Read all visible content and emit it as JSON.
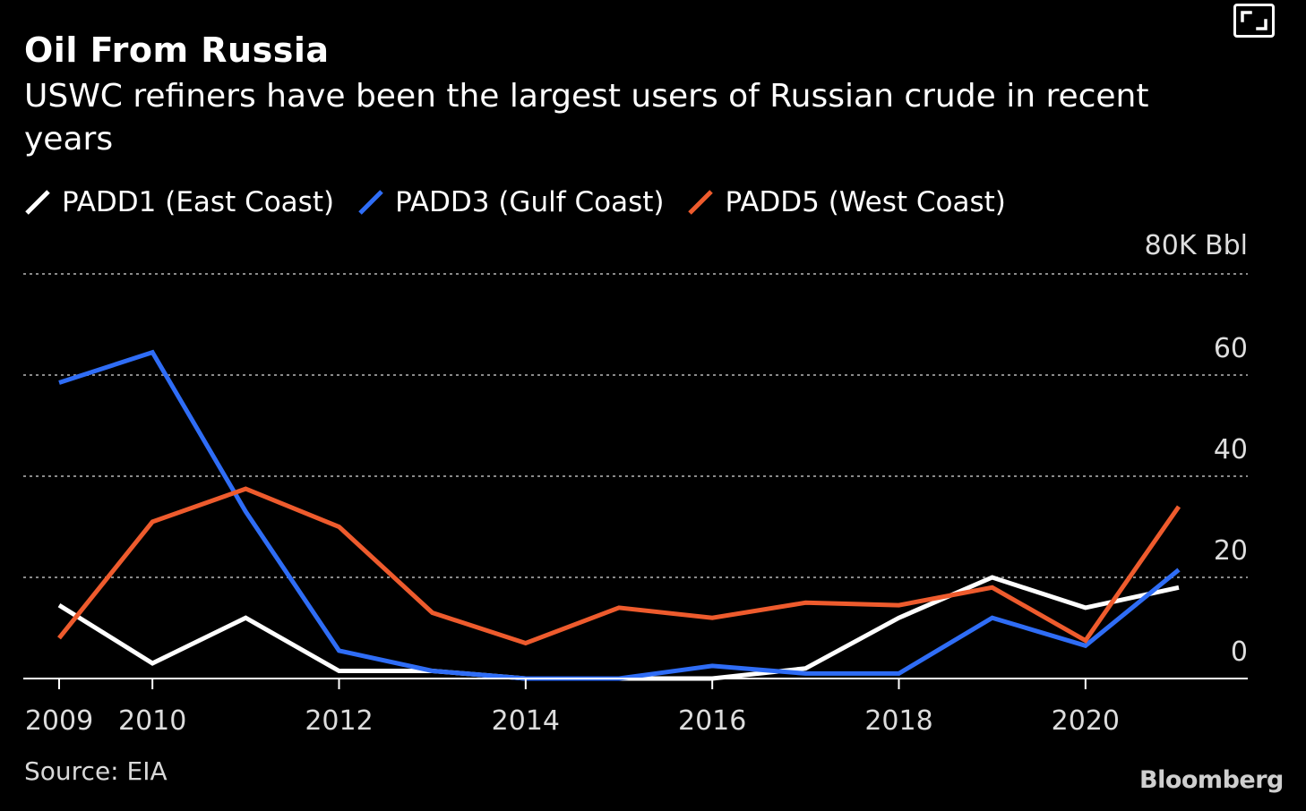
{
  "header": {
    "title": "Oil From Russia",
    "subtitle": "USWC refiners have been the largest users of Russian crude in recent years"
  },
  "icons": {
    "expand": "expand-icon"
  },
  "footer": {
    "source": "Source: EIA",
    "brand": "Bloomberg"
  },
  "colors": {
    "background": "#000000",
    "grid": "#8a8a8a",
    "axis": "#ffffff",
    "tick_label": "#dddddd"
  },
  "chart_data": {
    "type": "line",
    "unit_label": "80K Bbl",
    "x": [
      2009,
      2010,
      2011,
      2012,
      2013,
      2014,
      2015,
      2016,
      2017,
      2018,
      2019,
      2020,
      2021
    ],
    "xticks": [
      {
        "value": 2009,
        "label": "2009"
      },
      {
        "value": 2010,
        "label": "2010"
      },
      {
        "value": 2012,
        "label": "2012"
      },
      {
        "value": 2014,
        "label": "2014"
      },
      {
        "value": 2016,
        "label": "2016"
      },
      {
        "value": 2018,
        "label": "2018"
      },
      {
        "value": 2020,
        "label": "2020"
      }
    ],
    "yticks": [
      {
        "value": 0,
        "label": "0"
      },
      {
        "value": 20,
        "label": "20"
      },
      {
        "value": 40,
        "label": "40"
      },
      {
        "value": 60,
        "label": "60"
      },
      {
        "value": 80,
        "label": ""
      }
    ],
    "xlim": [
      2009,
      2021
    ],
    "ylim": [
      0,
      80
    ],
    "grid": true,
    "legend_position": "top-left",
    "series": [
      {
        "name": "PADD1 (East Coast)",
        "color": "#ffffff",
        "values": [
          14.5,
          3,
          12,
          1.5,
          1.5,
          0,
          0,
          0,
          2,
          12,
          20,
          14,
          18
        ]
      },
      {
        "name": "PADD3 (Gulf Coast)",
        "color": "#2f6df6",
        "values": [
          58.5,
          64.5,
          33,
          5.5,
          1.5,
          0,
          0,
          2.5,
          1,
          1,
          12,
          6.5,
          21.5
        ]
      },
      {
        "name": "PADD5 (West Coast)",
        "color": "#ee5b2d",
        "values": [
          8,
          31,
          37.5,
          30,
          13,
          7,
          14,
          12,
          15,
          14.5,
          18,
          7.5,
          34
        ]
      }
    ]
  }
}
